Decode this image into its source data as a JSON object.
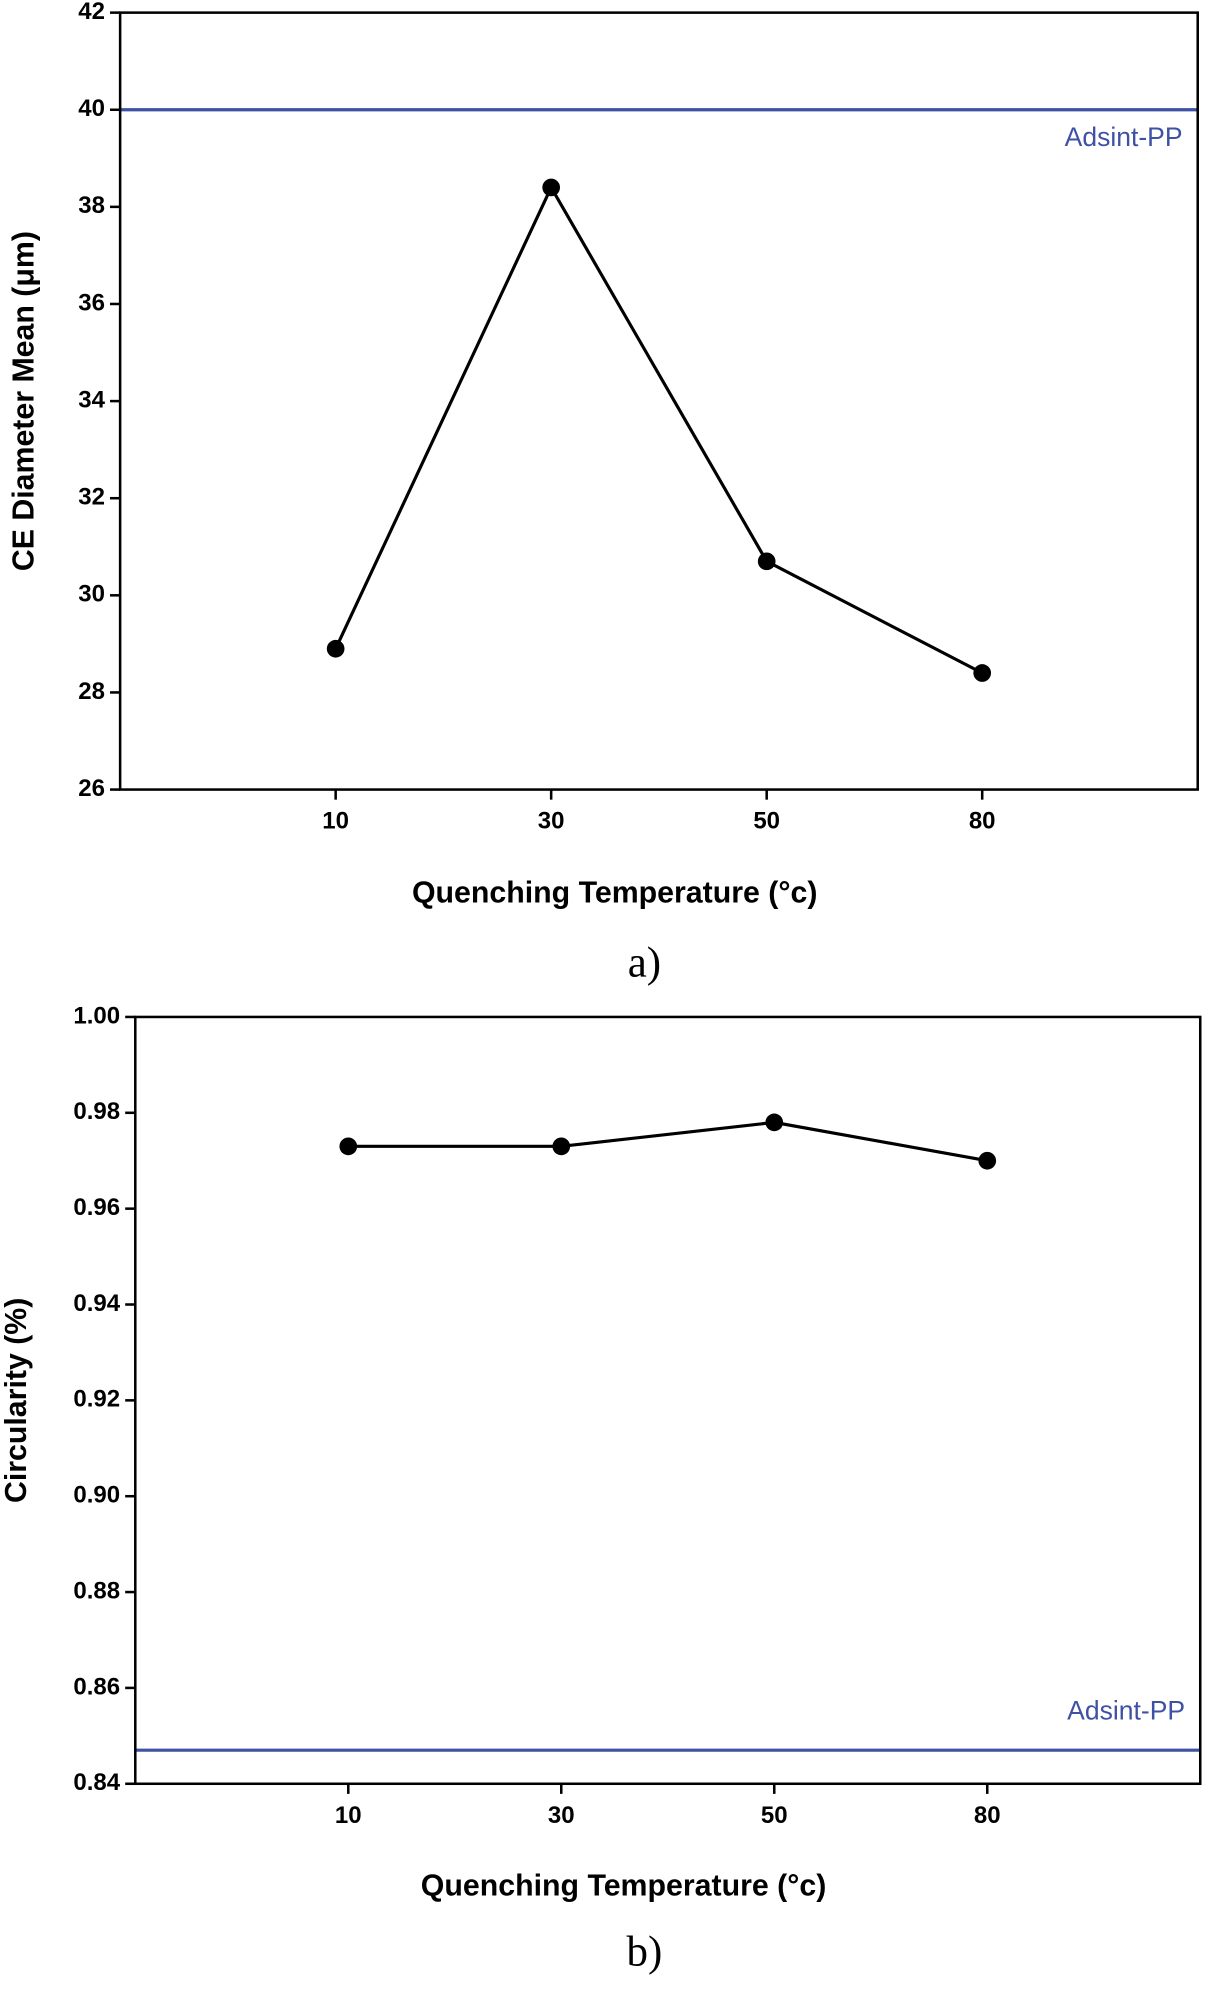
{
  "chart_data": [
    {
      "type": "line",
      "caption": "a)",
      "x_label": "Quenching Temperature (°c)",
      "y_label": "CE Diameter Mean (μm)",
      "categories": [
        "10",
        "30",
        "50",
        "80"
      ],
      "series": [
        {
          "color": "#000000",
          "values": [
            28.9,
            38.4,
            30.7,
            28.4
          ]
        }
      ],
      "ylim": [
        26,
        42
      ],
      "yticks": [
        26,
        28,
        30,
        32,
        34,
        36,
        38,
        40,
        42
      ],
      "reference_lines": [
        {
          "value": 40,
          "label": "Adsint-PP",
          "color": "#3f51a5"
        }
      ]
    },
    {
      "type": "line",
      "caption": "b)",
      "x_label": "Quenching Temperature (°c)",
      "y_label": "Circularity (%)",
      "categories": [
        "10",
        "30",
        "50",
        "80"
      ],
      "series": [
        {
          "color": "#000000",
          "values": [
            0.973,
            0.973,
            0.978,
            0.97
          ]
        }
      ],
      "ylim": [
        0.84,
        1.0
      ],
      "yticks": [
        0.84,
        0.86,
        0.88,
        {
          "value": 0.9,
          "label": "0.90"
        },
        0.92,
        0.94,
        0.96,
        0.98,
        {
          "value": 1.0,
          "label": "1.00"
        }
      ],
      "reference_lines": [
        {
          "value": 0.847,
          "label": "Adsint-PP",
          "color": "#3f51a5"
        }
      ]
    }
  ]
}
